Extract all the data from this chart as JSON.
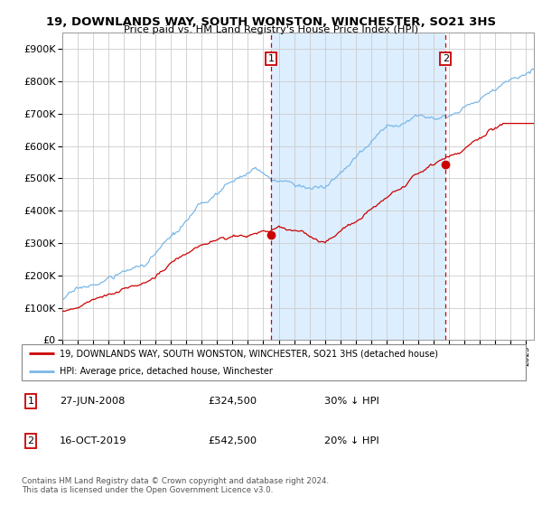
{
  "title": "19, DOWNLANDS WAY, SOUTH WONSTON, WINCHESTER, SO21 3HS",
  "subtitle": "Price paid vs. HM Land Registry's House Price Index (HPI)",
  "ylim": [
    0,
    950000
  ],
  "yticks": [
    0,
    100000,
    200000,
    300000,
    400000,
    500000,
    600000,
    700000,
    800000,
    900000
  ],
  "sale1_date": 2008.49,
  "sale1_price": 324500,
  "sale2_date": 2019.79,
  "sale2_price": 542500,
  "hpi_color": "#7ab8e8",
  "hpi_fill_color": "#ddeeff",
  "property_color": "#cc0000",
  "dashed_color": "#cc0000",
  "legend_property": "19, DOWNLANDS WAY, SOUTH WONSTON, WINCHESTER, SO21 3HS (detached house)",
  "legend_hpi": "HPI: Average price, detached house, Winchester",
  "annotation1": "27-JUN-2008",
  "annotation1_price": "£324,500",
  "annotation1_hpi": "30% ↓ HPI",
  "annotation2": "16-OCT-2019",
  "annotation2_price": "£542,500",
  "annotation2_hpi": "20% ↓ HPI",
  "footer": "Contains HM Land Registry data © Crown copyright and database right 2024.\nThis data is licensed under the Open Government Licence v3.0.",
  "xmin": 1995,
  "xmax": 2025.5
}
